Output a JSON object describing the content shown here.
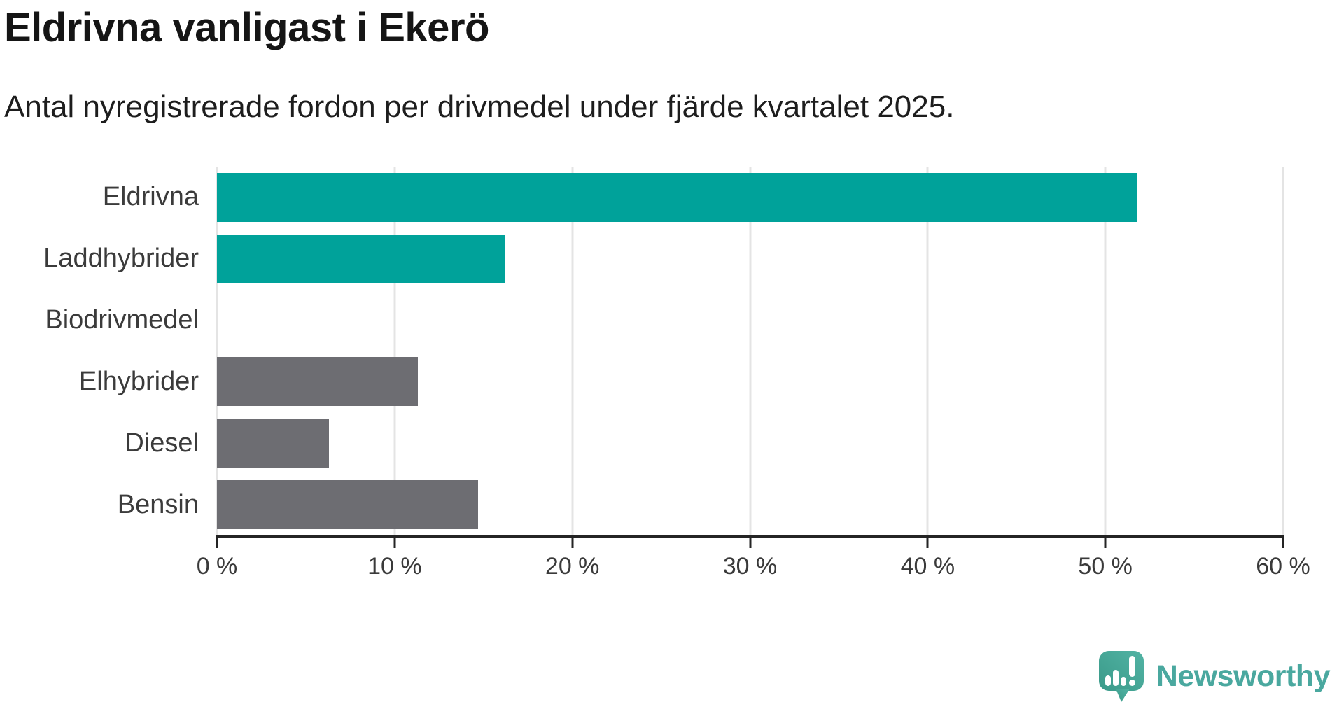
{
  "title": "Eldrivna vanligast i Ekerö",
  "subtitle": "Antal nyregistrerade fordon per drivmedel under fjärde kvartalet 2025.",
  "chart_data": {
    "type": "bar",
    "orientation": "horizontal",
    "title": "Eldrivna vanligast i Ekerö",
    "subtitle": "Antal nyregistrerade fordon per drivmedel under fjärde kvartalet 2025.",
    "categories": [
      "Eldrivna",
      "Laddhybrider",
      "Biodrivmedel",
      "Elhybrider",
      "Diesel",
      "Bensin"
    ],
    "values": [
      51.8,
      16.2,
      0,
      11.3,
      6.3,
      14.7
    ],
    "unit": "%",
    "xlim": [
      0,
      60
    ],
    "x_tick_values": [
      0,
      10,
      20,
      30,
      40,
      50,
      60
    ],
    "x_tick_labels": [
      "0 %",
      "10 %",
      "20 %",
      "30 %",
      "40 %",
      "50 %",
      "60 %"
    ],
    "grid": true,
    "legend": false,
    "bar_colors": [
      "#00a29a",
      "#00a29a",
      "#6d6d72",
      "#6d6d72",
      "#6d6d72",
      "#6d6d72"
    ],
    "highlight_color": "#00a29a",
    "default_color": "#6d6d72",
    "gridline_color": "#e4e4e4",
    "axis_color": "#242424",
    "label_color": "#3b3b3b"
  },
  "branding": {
    "logo_text": "Newsworthy",
    "logo_color": "#4aa89f",
    "logo_icon": "speech-bubble-bar-chart-exclamation"
  }
}
